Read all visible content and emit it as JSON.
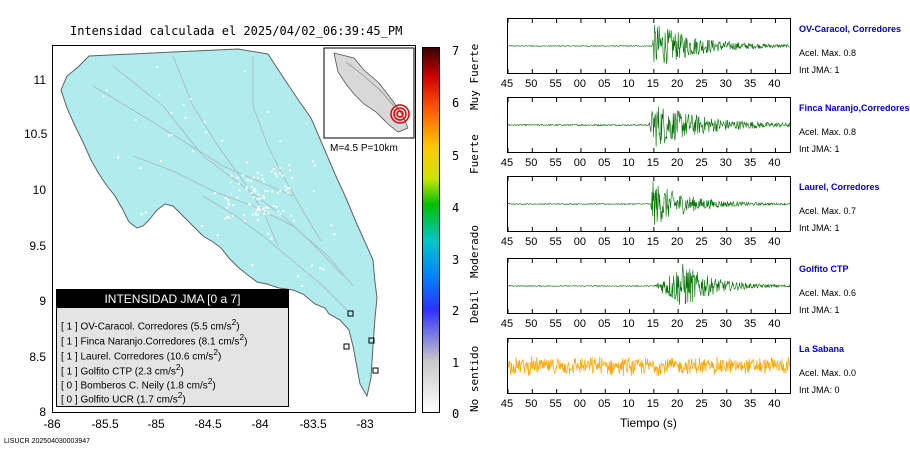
{
  "map": {
    "title": "Intensidad calculada el 2025/04/02_06:39:45_PM",
    "lat_ticks": [
      "11",
      "10.5",
      "10",
      "9.5",
      "9",
      "8.5",
      "8"
    ],
    "lon_ticks": [
      "-86",
      "-85.5",
      "-85",
      "-84.5",
      "-84",
      "-83.5",
      "-83"
    ],
    "inset_label": "M=4.5 P=10km",
    "land_color": "#b0ecee",
    "id_label": "LISUCR 202504030003947"
  },
  "legend": {
    "header": "INTENSIDAD JMA [0 a 7]",
    "rows": [
      {
        "code": "[ 1 ]",
        "name": "OV-Caracol. Corredores",
        "value": "(5.5 cm/s",
        "unit_exp": "2",
        "close": ")"
      },
      {
        "code": "[ 1 ]",
        "name": "Finca Naranjo.Corredores",
        "value": "(8.1 cm/s",
        "unit_exp": "2",
        "close": ")"
      },
      {
        "code": "[ 1 ]",
        "name": "Laurel. Corredores",
        "value": "(10.6 cm/s",
        "unit_exp": "2",
        "close": ")"
      },
      {
        "code": "[ 1 ]",
        "name": "Golfito CTP",
        "value": "(2.3 cm/s",
        "unit_exp": "2",
        "close": ")"
      },
      {
        "code": "[ 0 ]",
        "name": "Bomberos C. Neily",
        "value": "(1.8 cm/s",
        "unit_exp": "2",
        "close": ")"
      },
      {
        "code": "[ 0 ]",
        "name": "Golfito UCR",
        "value": "(1.7 cm/s",
        "unit_exp": "2",
        "close": ")"
      }
    ]
  },
  "intensity_scale": {
    "numbers": [
      "7",
      "6",
      "5",
      "4",
      "3",
      "2",
      "1",
      "0"
    ],
    "words": [
      "Muy Fuerte",
      "Fuerte",
      "Moderado",
      "Debil",
      "No sentido"
    ]
  },
  "chart_data": {
    "type": "line",
    "xlabel": "Tiempo (s)",
    "x_ticks": [
      "45",
      "50",
      "55",
      "00",
      "05",
      "10",
      "15",
      "20",
      "25",
      "30",
      "35",
      "40"
    ],
    "series": [
      {
        "name": "OV-Caracol, Corredores",
        "accel_label": "Acel. Max. 0.8",
        "jma_label": "Int JMA: 1",
        "color": "#007000",
        "onset": 14.5,
        "peak_time": 15.2,
        "peak": 0.8,
        "decay": 9,
        "noise": 0.02
      },
      {
        "name": "Finca Naranjo,Corredores",
        "accel_label": "Acel. Max. 0.8",
        "jma_label": "Int JMA: 1",
        "color": "#007000",
        "onset": 14.0,
        "peak_time": 15.0,
        "peak": 0.8,
        "decay": 10,
        "noise": 0.03
      },
      {
        "name": "Laurel, Corredores",
        "accel_label": "Acel. Max. 0.7",
        "jma_label": "Int JMA: 1",
        "color": "#007000",
        "onset": 14.3,
        "peak_time": 14.8,
        "peak": 0.7,
        "decay": 7,
        "noise": 0.02
      },
      {
        "name": "Golfito CTP",
        "accel_label": "Acel. Max. 0.6",
        "jma_label": "Int JMA: 1",
        "color": "#007000",
        "onset": 15.0,
        "peak_time": 21.0,
        "peak": 0.6,
        "decay": 6,
        "noise": 0.02
      },
      {
        "name": "La Sabana",
        "accel_label": "Acel. Max. 0.0",
        "jma_label": "Int JMA: 0",
        "color": "#ffa500",
        "onset": 0,
        "peak_time": 0,
        "peak": 0.0,
        "decay": 1,
        "noise": 0.45
      }
    ]
  }
}
